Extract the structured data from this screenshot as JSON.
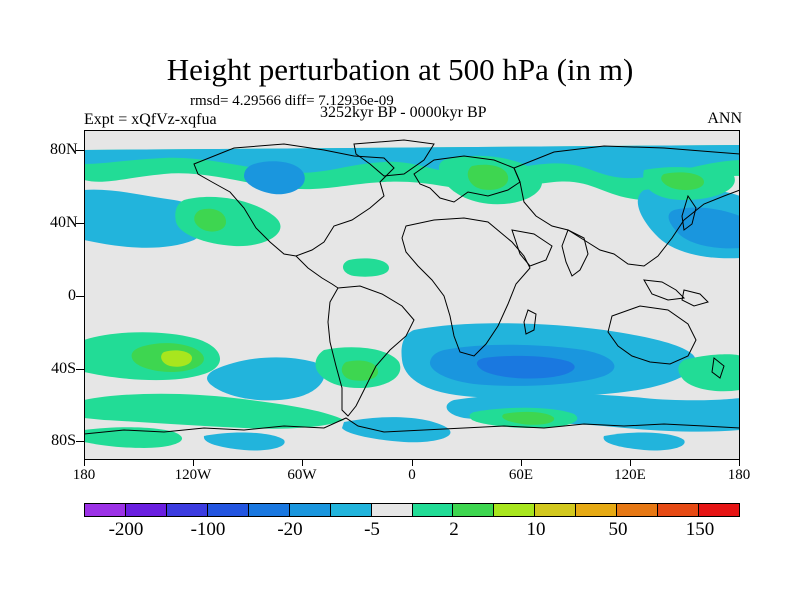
{
  "figure": {
    "title": "Height perturbation at 500 hPa (in m)",
    "stats": "rmsd= 4.29566 diff= 7.12936e-09",
    "left_label": "Expt = xQfVz-xqfua",
    "center_label": "3252kyr BP - 0000kyr BP",
    "right_label": "ANN"
  },
  "axes": {
    "lat_labels": [
      "80N",
      "40N",
      "0",
      "40S",
      "80S"
    ],
    "lon_labels": [
      "180",
      "120W",
      "60W",
      "0",
      "60E",
      "120E",
      "180"
    ]
  },
  "colorbar": {
    "colors": [
      "#9c32e6",
      "#6a1fe0",
      "#3c3ce0",
      "#2355e0",
      "#1a78e0",
      "#1a96de",
      "#22b4dc",
      "#e6e6e6",
      "#22dc96",
      "#3ed650",
      "#a8e61e",
      "#d2c81e",
      "#e6aa14",
      "#e67814",
      "#e64a14",
      "#e61414"
    ],
    "labels": [
      "-200",
      "-100",
      "-20",
      "-5",
      "2",
      "10",
      "50",
      "150"
    ]
  },
  "map_colors": {
    "neutral": "#e6e6e6",
    "light_blue": "#22b4dc",
    "mid_blue": "#1a96de",
    "dark_blue": "#1a78e0",
    "green": "#22dc96",
    "lime": "#3ed650",
    "yellow": "#a8e61e",
    "land_outline": "#000000"
  }
}
